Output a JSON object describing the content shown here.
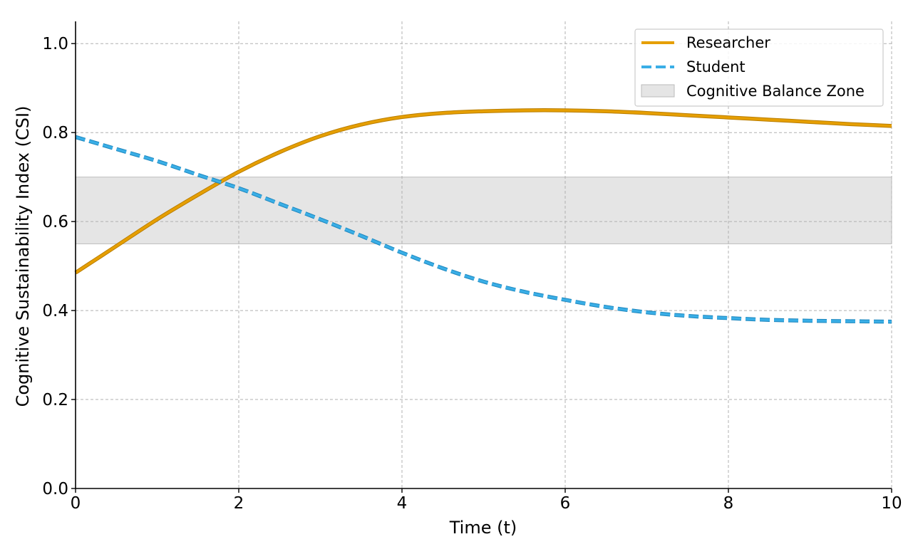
{
  "chart_data": {
    "type": "line",
    "title": "",
    "xlabel": "Time (t)",
    "ylabel": "Cognitive Sustainability Index (CSI)",
    "xlim": [
      0,
      10
    ],
    "ylim": [
      0,
      1.05
    ],
    "xticks": [
      0,
      2,
      4,
      6,
      8,
      10
    ],
    "xtick_labels": [
      "0",
      "2",
      "4",
      "6",
      "8",
      "10"
    ],
    "yticks": [
      0.0,
      0.2,
      0.4,
      0.6,
      0.8,
      1.0
    ],
    "ytick_labels": [
      "0.0",
      "0.2",
      "0.4",
      "0.6",
      "0.8",
      "1.0"
    ],
    "grid": true,
    "legend_position": "top-right",
    "band": {
      "name": "Cognitive Balance Zone",
      "y_range": [
        0.55,
        0.7
      ],
      "color": "#e5e5e5"
    },
    "series": [
      {
        "name": "Researcher",
        "style": "solid",
        "color": "#e69f00",
        "x": [
          0,
          0.5,
          1,
          1.5,
          2,
          2.5,
          3,
          3.5,
          4,
          4.5,
          5,
          5.5,
          6,
          6.5,
          7,
          7.5,
          8,
          8.5,
          9,
          9.5,
          10
        ],
        "y": [
          0.485,
          0.545,
          0.605,
          0.66,
          0.712,
          0.756,
          0.792,
          0.818,
          0.835,
          0.844,
          0.848,
          0.85,
          0.85,
          0.848,
          0.844,
          0.839,
          0.834,
          0.829,
          0.824,
          0.819,
          0.815
        ]
      },
      {
        "name": "Student",
        "style": "dashed",
        "color": "#3aaee6",
        "x": [
          0,
          0.5,
          1,
          1.5,
          2,
          2.5,
          3,
          3.5,
          4,
          4.5,
          5,
          5.5,
          6,
          6.5,
          7,
          7.5,
          8,
          8.5,
          9,
          9.5,
          10
        ],
        "y": [
          0.79,
          0.763,
          0.736,
          0.705,
          0.675,
          0.64,
          0.605,
          0.568,
          0.53,
          0.495,
          0.465,
          0.442,
          0.424,
          0.408,
          0.396,
          0.388,
          0.383,
          0.379,
          0.377,
          0.376,
          0.375
        ]
      }
    ]
  }
}
